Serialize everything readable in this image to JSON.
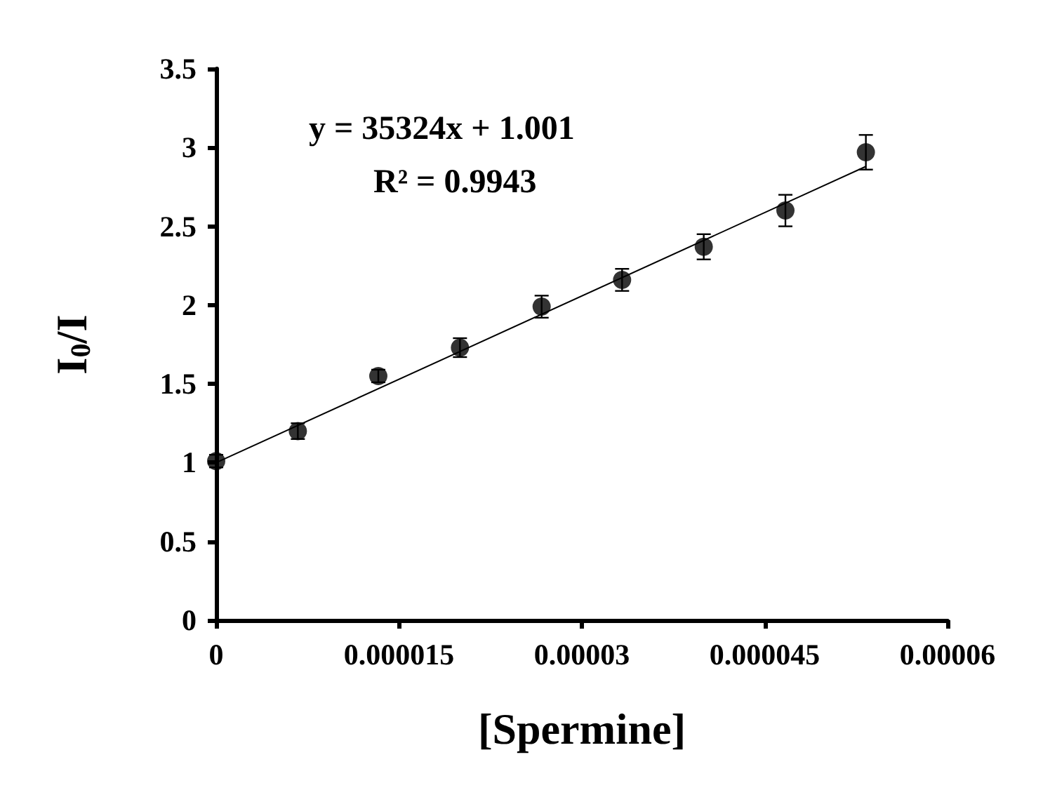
{
  "chart_data": {
    "type": "scatter",
    "xlabel": "[Spermine]",
    "ylabel": "I$_{0}$/I",
    "xlim": [
      0,
      6e-05
    ],
    "xticks": [
      0,
      {
        "value": 1.5e-05,
        "label": "0.000015"
      },
      {
        "value": 3e-05,
        "label": "0.00003"
      },
      {
        "value": 4.5e-05,
        "label": "0.000045"
      },
      {
        "value": 6e-05,
        "label": "0.00006"
      }
    ],
    "ylim": [
      0,
      3.5
    ],
    "yticks": [
      0,
      0.5,
      1,
      1.5,
      2,
      2.5,
      3,
      3.5
    ],
    "grid": false,
    "marker": "circle",
    "annotations": [
      "y = 35324x + 1.001",
      "R² = 0.9943"
    ],
    "series": [
      {
        "color": "#000000",
        "x": [
          0,
          6.7e-06,
          1.33e-05,
          2e-05,
          2.67e-05,
          3.33e-05,
          4e-05,
          4.67e-05,
          5.33e-05
        ],
        "values": [
          1.01,
          1.2,
          1.55,
          1.73,
          1.99,
          2.16,
          2.37,
          2.6,
          2.97
        ],
        "errors": [
          0.04,
          0.05,
          0.04,
          0.06,
          0.07,
          0.07,
          0.08,
          0.1,
          0.11
        ]
      },
      {
        "type": "line",
        "color": "#000000",
        "marker": "none",
        "line_style": "solid",
        "x": [
          0,
          5.33e-05
        ],
        "values": [
          1.0,
          2.88
        ]
      }
    ]
  }
}
